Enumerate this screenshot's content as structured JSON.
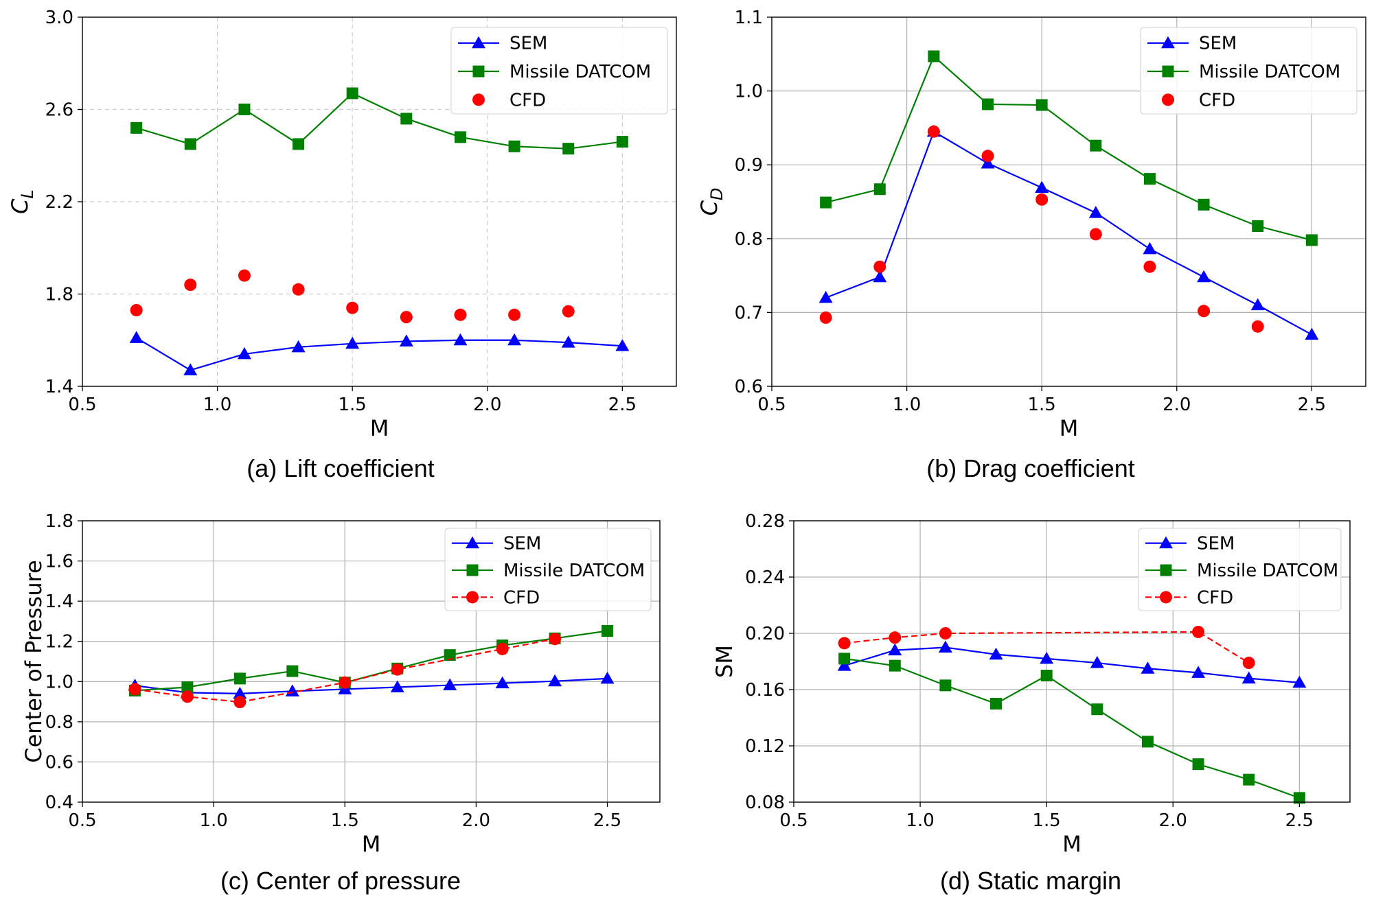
{
  "chart_data": [
    {
      "type": "line",
      "id": "a",
      "caption": "(a) Lift coefficient",
      "xlabel": "M",
      "ylabel": "C",
      "ylabel_sub": "L",
      "xlim": [
        0.5,
        2.7
      ],
      "ylim": [
        1.4,
        3.0
      ],
      "xticks": [
        "0.5",
        "1.0",
        "1.5",
        "2.0",
        "2.5"
      ],
      "xtick_values": [
        0.5,
        1.0,
        1.5,
        2.0,
        2.5
      ],
      "yticks": [
        "1.4",
        "1.8",
        "2.2",
        "2.6",
        "3.0"
      ],
      "ytick_values": [
        1.4,
        1.8,
        2.2,
        2.6,
        3.0
      ],
      "grid": "dashed",
      "legend_position": "top-right",
      "series": [
        {
          "name": "SEM",
          "color": "#0000ff",
          "marker": "triangle",
          "line": "solid",
          "x": [
            0.7,
            0.9,
            1.1,
            1.3,
            1.5,
            1.7,
            1.9,
            2.1,
            2.3,
            2.5
          ],
          "values": [
            1.61,
            1.47,
            1.54,
            1.57,
            1.585,
            1.595,
            1.6,
            1.6,
            1.59,
            1.575
          ]
        },
        {
          "name": "Missile DATCOM",
          "color": "#008000",
          "marker": "square",
          "line": "solid",
          "x": [
            0.7,
            0.9,
            1.1,
            1.3,
            1.5,
            1.7,
            1.9,
            2.1,
            2.3,
            2.5
          ],
          "values": [
            2.52,
            2.45,
            2.6,
            2.45,
            2.67,
            2.56,
            2.48,
            2.44,
            2.43,
            2.46
          ]
        },
        {
          "name": "CFD",
          "color": "#ff0000",
          "marker": "circle",
          "line": "none",
          "x": [
            0.7,
            0.9,
            1.1,
            1.3,
            1.5,
            1.7,
            1.9,
            2.1,
            2.3
          ],
          "values": [
            1.73,
            1.84,
            1.88,
            1.82,
            1.74,
            1.7,
            1.71,
            1.71,
            1.725
          ]
        }
      ]
    },
    {
      "type": "line",
      "id": "b",
      "caption": "(b) Drag coefficient",
      "xlabel": "M",
      "ylabel": "C",
      "ylabel_sub": "D",
      "xlim": [
        0.5,
        2.7
      ],
      "ylim": [
        0.6,
        1.1
      ],
      "xticks": [
        "0.5",
        "1.0",
        "1.5",
        "2.0",
        "2.5"
      ],
      "xtick_values": [
        0.5,
        1.0,
        1.5,
        2.0,
        2.5
      ],
      "yticks": [
        "0.6",
        "0.7",
        "0.8",
        "0.9",
        "1.0",
        "1.1"
      ],
      "ytick_values": [
        0.6,
        0.7,
        0.8,
        0.9,
        1.0,
        1.1
      ],
      "grid": "solid",
      "legend_position": "top-right",
      "series": [
        {
          "name": "SEM",
          "color": "#0000ff",
          "marker": "triangle",
          "line": "solid",
          "x": [
            0.7,
            0.9,
            1.1,
            1.3,
            1.5,
            1.7,
            1.9,
            2.1,
            2.3,
            2.5
          ],
          "values": [
            0.72,
            0.748,
            0.945,
            0.902,
            0.869,
            0.835,
            0.786,
            0.748,
            0.71,
            0.67
          ]
        },
        {
          "name": "Missile DATCOM",
          "color": "#008000",
          "marker": "square",
          "line": "solid",
          "x": [
            0.7,
            0.9,
            1.1,
            1.3,
            1.5,
            1.7,
            1.9,
            2.1,
            2.3,
            2.5
          ],
          "values": [
            0.849,
            0.867,
            1.047,
            0.982,
            0.981,
            0.926,
            0.881,
            0.846,
            0.817,
            0.798
          ]
        },
        {
          "name": "CFD",
          "color": "#ff0000",
          "marker": "circle",
          "line": "none",
          "x": [
            0.7,
            0.9,
            1.1,
            1.3,
            1.5,
            1.7,
            1.9,
            2.1,
            2.3
          ],
          "values": [
            0.693,
            0.762,
            0.945,
            0.912,
            0.853,
            0.806,
            0.762,
            0.702,
            0.681
          ]
        }
      ]
    },
    {
      "type": "line",
      "id": "c",
      "caption": "(c) Center of pressure",
      "xlabel": "M",
      "ylabel": "Center of Pressure",
      "ylabel_sub": "",
      "xlim": [
        0.5,
        2.7
      ],
      "ylim": [
        0.4,
        1.8
      ],
      "xticks": [
        "0.5",
        "1.0",
        "1.5",
        "2.0",
        "2.5"
      ],
      "xtick_values": [
        0.5,
        1.0,
        1.5,
        2.0,
        2.5
      ],
      "yticks": [
        "0.4",
        "0.6",
        "0.8",
        "1.0",
        "1.2",
        "1.4",
        "1.6",
        "1.8"
      ],
      "ytick_values": [
        0.4,
        0.6,
        0.8,
        1.0,
        1.2,
        1.4,
        1.6,
        1.8
      ],
      "grid": "solid",
      "legend_position": "top-right",
      "series": [
        {
          "name": "SEM",
          "color": "#0000ff",
          "marker": "triangle",
          "line": "solid",
          "x": [
            0.7,
            0.9,
            1.1,
            1.3,
            1.5,
            1.7,
            1.9,
            2.1,
            2.3,
            2.5
          ],
          "values": [
            0.98,
            0.945,
            0.94,
            0.952,
            0.962,
            0.972,
            0.982,
            0.992,
            1.002,
            1.015
          ]
        },
        {
          "name": "Missile DATCOM",
          "color": "#008000",
          "marker": "square",
          "line": "solid",
          "x": [
            0.7,
            0.9,
            1.1,
            1.3,
            1.5,
            1.7,
            1.9,
            2.1,
            2.3,
            2.5
          ],
          "values": [
            0.955,
            0.972,
            1.015,
            1.052,
            0.995,
            1.065,
            1.132,
            1.18,
            1.215,
            1.252
          ]
        },
        {
          "name": "CFD",
          "color": "#ff0000",
          "marker": "circle",
          "line": "dashed",
          "x": [
            0.7,
            0.9,
            1.1,
            1.5,
            1.7,
            2.1,
            2.3
          ],
          "values": [
            0.962,
            0.925,
            0.898,
            0.995,
            1.06,
            1.162,
            1.212
          ]
        }
      ]
    },
    {
      "type": "line",
      "id": "d",
      "caption": "(d) Static margin",
      "xlabel": "M",
      "ylabel": "SM",
      "ylabel_sub": "",
      "xlim": [
        0.5,
        2.7
      ],
      "ylim": [
        0.08,
        0.28
      ],
      "xticks": [
        "0.5",
        "1.0",
        "1.5",
        "2.0",
        "2.5"
      ],
      "xtick_values": [
        0.5,
        1.0,
        1.5,
        2.0,
        2.5
      ],
      "yticks": [
        "0.08",
        "0.12",
        "0.16",
        "0.20",
        "0.24",
        "0.28"
      ],
      "ytick_values": [
        0.08,
        0.12,
        0.16,
        0.2,
        0.24,
        0.28
      ],
      "grid": "solid",
      "legend_position": "top-right",
      "series": [
        {
          "name": "SEM",
          "color": "#0000ff",
          "marker": "triangle",
          "line": "solid",
          "x": [
            0.7,
            0.9,
            1.1,
            1.3,
            1.5,
            1.7,
            1.9,
            2.1,
            2.3,
            2.5
          ],
          "values": [
            0.177,
            0.188,
            0.19,
            0.185,
            0.182,
            0.179,
            0.175,
            0.172,
            0.168,
            0.165
          ]
        },
        {
          "name": "Missile DATCOM",
          "color": "#008000",
          "marker": "square",
          "line": "solid",
          "x": [
            0.7,
            0.9,
            1.1,
            1.3,
            1.5,
            1.7,
            1.9,
            2.1,
            2.3,
            2.5
          ],
          "values": [
            0.182,
            0.177,
            0.163,
            0.15,
            0.17,
            0.146,
            0.123,
            0.107,
            0.096,
            0.083
          ]
        },
        {
          "name": "CFD",
          "color": "#ff0000",
          "marker": "circle",
          "line": "dashed",
          "x": [
            0.7,
            0.9,
            1.1,
            2.1,
            2.3
          ],
          "values": [
            0.193,
            0.197,
            0.2,
            0.201,
            0.179
          ]
        }
      ]
    }
  ]
}
